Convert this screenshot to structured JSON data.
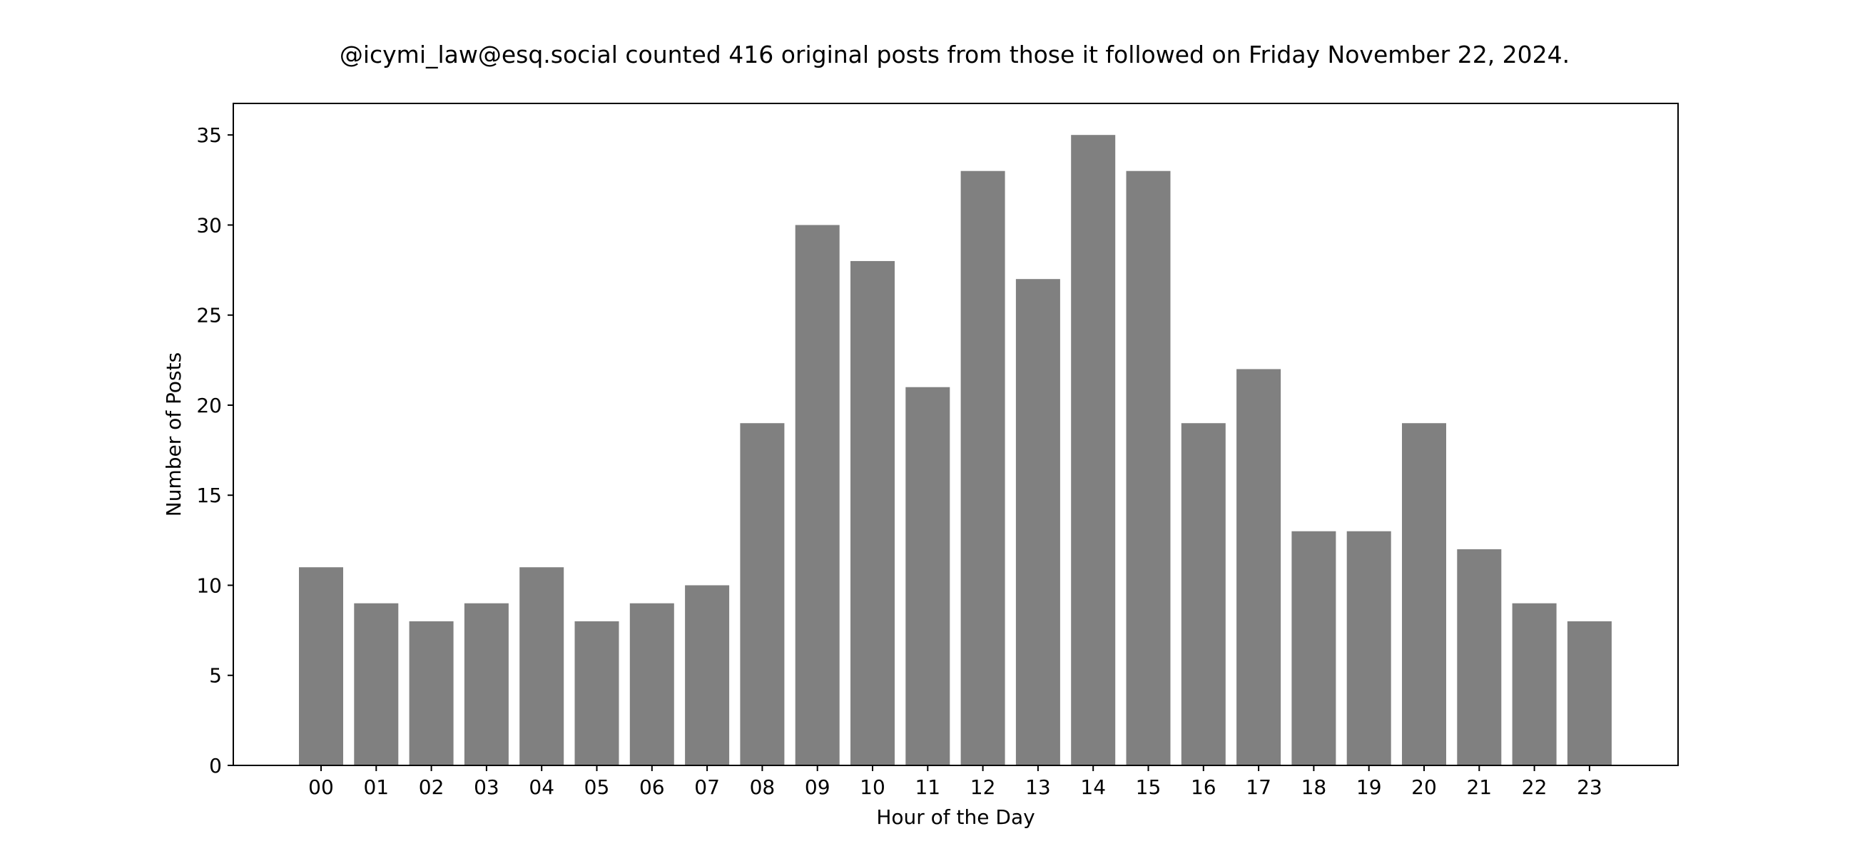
{
  "chart_data": {
    "type": "bar",
    "title": "@icymi_law@esq.social counted 416 original posts from those it followed on Friday November 22, 2024.",
    "xlabel": "Hour of the Day",
    "ylabel": "Number of Posts",
    "categories": [
      "00",
      "01",
      "02",
      "03",
      "04",
      "05",
      "06",
      "07",
      "08",
      "09",
      "10",
      "11",
      "12",
      "13",
      "14",
      "15",
      "16",
      "17",
      "18",
      "19",
      "20",
      "21",
      "22",
      "23"
    ],
    "values": [
      11,
      9,
      8,
      9,
      11,
      8,
      9,
      10,
      19,
      30,
      28,
      21,
      33,
      27,
      35,
      33,
      19,
      22,
      13,
      13,
      19,
      12,
      9,
      8
    ],
    "ylim": [
      0,
      36.75
    ],
    "yticks": [
      0,
      5,
      10,
      15,
      20,
      25,
      30,
      35
    ],
    "bar_color": "#808080",
    "grid": false,
    "legend": "none"
  }
}
